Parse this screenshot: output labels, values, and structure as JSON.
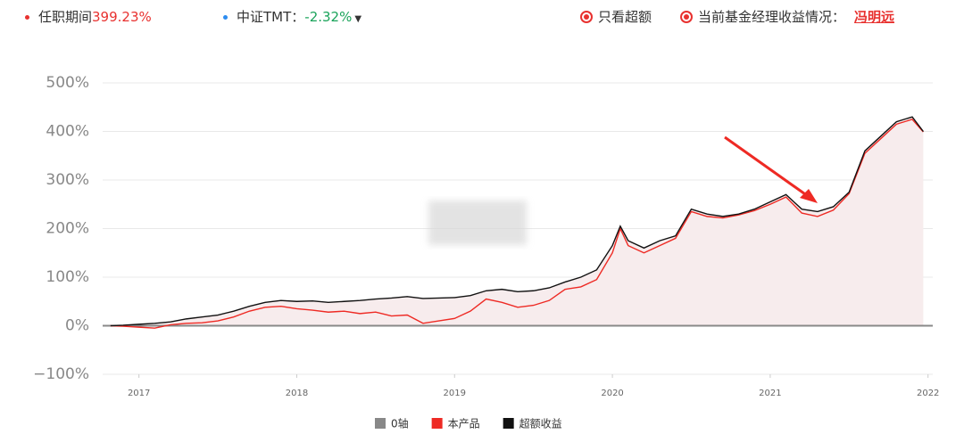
{
  "header": {
    "tenure_label": "任职期间",
    "tenure_value": "399.23%",
    "benchmark_label": "中证TMT：",
    "benchmark_value": "-2.32%",
    "excess_only": "只看超额",
    "manager_label": "当前基金经理收益情况：",
    "manager_name": "冯明远"
  },
  "chart_data": {
    "type": "line",
    "x": [
      2016.82,
      2016.9,
      2017.0,
      2017.1,
      2017.2,
      2017.3,
      2017.4,
      2017.5,
      2017.6,
      2017.7,
      2017.8,
      2017.9,
      2018.0,
      2018.1,
      2018.2,
      2018.3,
      2018.4,
      2018.5,
      2018.6,
      2018.7,
      2018.8,
      2018.9,
      2019.0,
      2019.1,
      2019.2,
      2019.3,
      2019.4,
      2019.5,
      2019.6,
      2019.7,
      2019.8,
      2019.9,
      2020.0,
      2020.05,
      2020.1,
      2020.2,
      2020.3,
      2020.4,
      2020.5,
      2020.6,
      2020.7,
      2020.8,
      2020.9,
      2021.0,
      2021.1,
      2021.2,
      2021.3,
      2021.4,
      2021.5,
      2021.6,
      2021.7,
      2021.8,
      2021.9,
      2021.97
    ],
    "series": [
      {
        "name": "本产品",
        "color": "#ee2a24",
        "values": [
          0,
          -1,
          -3,
          -5,
          2,
          5,
          6,
          10,
          18,
          30,
          38,
          40,
          35,
          32,
          28,
          30,
          25,
          28,
          20,
          22,
          5,
          10,
          15,
          30,
          55,
          48,
          38,
          42,
          52,
          75,
          80,
          95,
          150,
          200,
          165,
          150,
          165,
          180,
          235,
          225,
          222,
          228,
          237,
          250,
          265,
          232,
          225,
          238,
          272,
          355,
          385,
          415,
          425,
          399
        ]
      },
      {
        "name": "超额收益",
        "color": "#111111",
        "values": [
          0,
          1,
          3,
          5,
          8,
          14,
          18,
          22,
          30,
          40,
          48,
          52,
          50,
          51,
          48,
          50,
          52,
          55,
          57,
          60,
          56,
          57,
          58,
          62,
          72,
          75,
          70,
          72,
          78,
          90,
          100,
          115,
          165,
          205,
          175,
          160,
          175,
          185,
          240,
          230,
          225,
          230,
          240,
          255,
          270,
          240,
          235,
          245,
          275,
          360,
          390,
          420,
          430,
          400
        ]
      }
    ],
    "zero_line": {
      "name": "0轴",
      "color": "#888888",
      "value": 0
    },
    "area_color": "#f7eced",
    "xlim": [
      2016.77,
      2022.03
    ],
    "xticks": [
      2017,
      2018,
      2019,
      2020,
      2021,
      2022
    ],
    "ylim": [
      -100,
      500
    ],
    "yticks": [
      {
        "value": -100,
        "label": "−100%"
      },
      {
        "value": 0,
        "label": "0%"
      },
      {
        "value": 100,
        "label": "100%"
      },
      {
        "value": 200,
        "label": "200%"
      },
      {
        "value": 300,
        "label": "300%"
      },
      {
        "value": 400,
        "label": "400%"
      },
      {
        "value": 500,
        "label": "500%"
      }
    ],
    "grid": true
  }
}
